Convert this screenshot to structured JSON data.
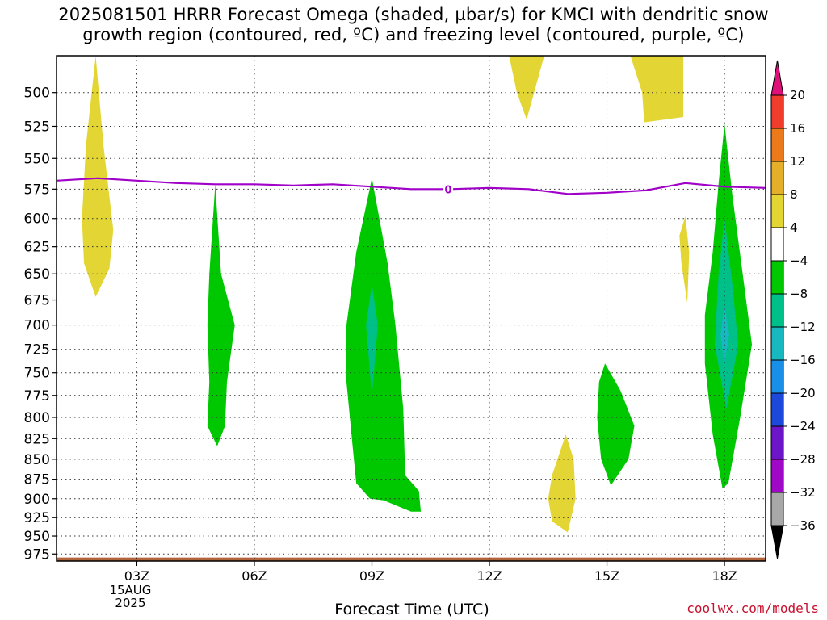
{
  "chart_data": {
    "type": "contour",
    "title": "2025081501 HRRR Forecast Omega (shaded, µbar/s) for KMCI with dendritic snow",
    "title_line2": "growth region (contoured, red, ºC) and freezing level (contoured, purple, ºC)",
    "xlabel": "Forecast Time (UTC)",
    "credit": "coolwx.com/models",
    "x_range_hours": [
      0.95,
      19.05
    ],
    "x_ticks": [
      {
        "hour": 3,
        "label": "03Z",
        "sub": [
          "15AUG",
          "2025"
        ]
      },
      {
        "hour": 6,
        "label": "06Z",
        "sub": []
      },
      {
        "hour": 9,
        "label": "09Z",
        "sub": []
      },
      {
        "hour": 12,
        "label": "12Z",
        "sub": []
      },
      {
        "hour": 15,
        "label": "15Z",
        "sub": []
      },
      {
        "hour": 18,
        "label": "18Z",
        "sub": []
      }
    ],
    "y_range_mb": [
      474,
      985
    ],
    "y_scale": "log",
    "y_ticks": [
      500,
      525,
      550,
      575,
      600,
      625,
      650,
      675,
      700,
      725,
      750,
      775,
      800,
      825,
      850,
      875,
      900,
      925,
      950,
      975
    ],
    "grid": true,
    "colorbar": {
      "levels": [
        "20",
        "16",
        "12",
        "8",
        "4",
        "−4",
        "−8",
        "−12",
        "−16",
        "−20",
        "−24",
        "−28",
        "−32",
        "−36"
      ],
      "colors": [
        "#e0107a",
        "#f03c2c",
        "#ec7a1a",
        "#e4b02a",
        "#e3d634",
        "#ffffff",
        "#00c800",
        "#00c08a",
        "#18b8c0",
        "#1890e8",
        "#1c48dc",
        "#6c14c8",
        "#a008c8",
        "#a8a8a8",
        "#000000"
      ]
    },
    "shaded_regions": [
      {
        "fill": "#e3d634",
        "points": [
          [
            1.95,
            474
          ],
          [
            2.15,
            540
          ],
          [
            2.4,
            610
          ],
          [
            2.3,
            645
          ],
          [
            1.95,
            672
          ],
          [
            1.65,
            640
          ],
          [
            1.6,
            600
          ],
          [
            1.7,
            540
          ]
        ]
      },
      {
        "fill": "#00c800",
        "points": [
          [
            5.0,
            571
          ],
          [
            5.15,
            650
          ],
          [
            5.5,
            700
          ],
          [
            5.3,
            760
          ],
          [
            5.25,
            810
          ],
          [
            5.05,
            834
          ],
          [
            4.8,
            810
          ],
          [
            4.85,
            760
          ],
          [
            4.8,
            700
          ],
          [
            4.85,
            650
          ]
        ]
      },
      {
        "fill": "#00c800",
        "points": [
          [
            9.0,
            566
          ],
          [
            9.4,
            640
          ],
          [
            9.6,
            700
          ],
          [
            9.8,
            790
          ],
          [
            9.85,
            870
          ],
          [
            10.2,
            890
          ],
          [
            10.25,
            917
          ],
          [
            10.0,
            917
          ],
          [
            9.3,
            902
          ],
          [
            8.95,
            900
          ],
          [
            8.6,
            880
          ],
          [
            8.5,
            830
          ],
          [
            8.35,
            760
          ],
          [
            8.35,
            700
          ],
          [
            8.6,
            630
          ]
        ]
      },
      {
        "fill": "#00c08a",
        "points": [
          [
            9.0,
            660
          ],
          [
            9.15,
            700
          ],
          [
            9.0,
            775
          ],
          [
            8.85,
            700
          ]
        ]
      },
      {
        "fill": "#e3d634",
        "points": [
          [
            12.5,
            474
          ],
          [
            13.4,
            474
          ],
          [
            12.95,
            520
          ],
          [
            12.7,
            500
          ]
        ]
      },
      {
        "fill": "#e3d634",
        "points": [
          [
            13.95,
            820
          ],
          [
            14.15,
            850
          ],
          [
            14.2,
            900
          ],
          [
            14.0,
            945
          ],
          [
            13.6,
            930
          ],
          [
            13.5,
            900
          ],
          [
            13.6,
            870
          ]
        ]
      },
      {
        "fill": "#e3d634",
        "points": [
          [
            15.6,
            474
          ],
          [
            16.95,
            474
          ],
          [
            16.95,
            518
          ],
          [
            15.95,
            522
          ],
          [
            15.9,
            500
          ]
        ]
      },
      {
        "fill": "#00c800",
        "points": [
          [
            14.95,
            740
          ],
          [
            15.35,
            770
          ],
          [
            15.7,
            810
          ],
          [
            15.55,
            850
          ],
          [
            15.1,
            883
          ],
          [
            14.85,
            850
          ],
          [
            14.75,
            800
          ],
          [
            14.8,
            760
          ]
        ]
      },
      {
        "fill": "#e3d634",
        "points": [
          [
            17.0,
            598
          ],
          [
            17.1,
            630
          ],
          [
            17.05,
            678
          ],
          [
            16.9,
            640
          ],
          [
            16.85,
            615
          ]
        ]
      },
      {
        "fill": "#00c800",
        "points": [
          [
            18.0,
            523
          ],
          [
            18.2,
            580
          ],
          [
            18.5,
            660
          ],
          [
            18.7,
            720
          ],
          [
            18.4,
            800
          ],
          [
            18.1,
            880
          ],
          [
            17.95,
            887
          ],
          [
            17.7,
            820
          ],
          [
            17.5,
            740
          ],
          [
            17.5,
            690
          ],
          [
            17.7,
            630
          ],
          [
            17.85,
            570
          ]
        ]
      },
      {
        "fill": "#00c08a",
        "points": [
          [
            18.0,
            600
          ],
          [
            18.2,
            660
          ],
          [
            18.35,
            720
          ],
          [
            18.05,
            790
          ],
          [
            17.75,
            720
          ],
          [
            17.85,
            650
          ]
        ]
      },
      {
        "fill": "#18b8c0",
        "points": [
          [
            18.0,
            680
          ],
          [
            18.12,
            710
          ],
          [
            18.0,
            740
          ],
          [
            17.9,
            710
          ]
        ]
      }
    ],
    "freezing_level": {
      "label": "0",
      "color": "#a000c8",
      "points": [
        [
          0.95,
          568
        ],
        [
          2.0,
          566
        ],
        [
          3.0,
          568
        ],
        [
          4.0,
          570
        ],
        [
          5.0,
          571
        ],
        [
          6.0,
          571
        ],
        [
          7.0,
          572
        ],
        [
          8.0,
          571
        ],
        [
          9.0,
          573
        ],
        [
          10.0,
          575
        ],
        [
          11.0,
          575
        ],
        [
          12.0,
          574
        ],
        [
          13.0,
          575
        ],
        [
          14.0,
          579
        ],
        [
          15.0,
          578
        ],
        [
          16.0,
          576
        ],
        [
          17.0,
          570
        ],
        [
          18.0,
          573
        ],
        [
          19.05,
          574
        ]
      ],
      "label_hour": 10.95
    },
    "surface": {
      "color": "#b4643c",
      "pressure_mb": 980
    }
  }
}
